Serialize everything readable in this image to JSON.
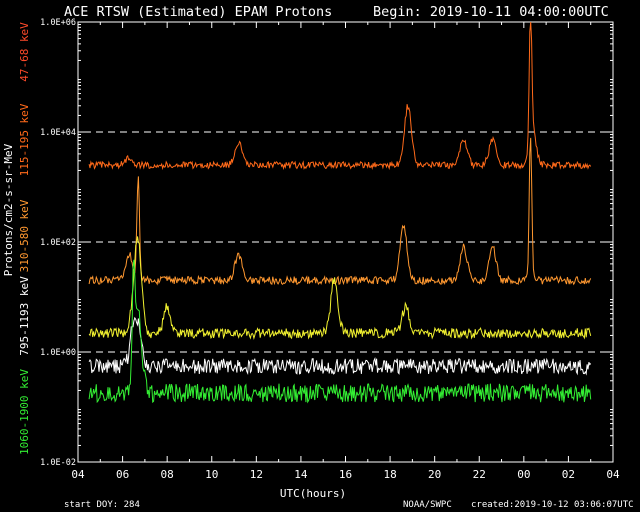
{
  "chart_data": {
    "type": "line",
    "title": "ACE RTSW (Estimated) EPAM Protons",
    "begin": "Begin: 2019-10-11 04:00:00UTC",
    "xlabel": "UTC(hours)",
    "ylabel": "Protons/cm2-s-sr-MeV",
    "y_scale": "log",
    "ylim": [
      0.01,
      1000000
    ],
    "y_ticks": [
      "1.0E-02",
      "1.0E+00",
      "1.0E+02",
      "1.0E+04",
      "1.0E+06"
    ],
    "dashed_reference_lines": [
      1,
      100,
      10000
    ],
    "x_range_hours": [
      4,
      28
    ],
    "x_ticks": [
      "04",
      "06",
      "08",
      "10",
      "12",
      "14",
      "16",
      "18",
      "20",
      "22",
      "00",
      "02",
      "04"
    ],
    "series": [
      {
        "name": "47-68 keV",
        "color": "#ff4a2a",
        "base": 2500,
        "events": [
          [
            6.3,
            1.4
          ],
          [
            11.2,
            2.6
          ],
          [
            18.8,
            12
          ],
          [
            21.3,
            3
          ],
          [
            22.6,
            3
          ],
          [
            24.3,
            250
          ],
          [
            24.4,
            4
          ]
        ]
      },
      {
        "name": "115-195 keV",
        "color": "#ff6a1a",
        "base": 2500,
        "events": [
          [
            6.3,
            1.4
          ],
          [
            11.2,
            2.6
          ],
          [
            18.8,
            12
          ],
          [
            21.3,
            3
          ],
          [
            22.6,
            3
          ],
          [
            24.3,
            250
          ],
          [
            24.4,
            4
          ]
        ]
      },
      {
        "name": "310-580 keV",
        "color": "#ff9830",
        "base": 20,
        "events": [
          [
            6.3,
            3
          ],
          [
            6.7,
            80
          ],
          [
            11.2,
            3
          ],
          [
            18.6,
            10
          ],
          [
            21.3,
            4
          ],
          [
            22.6,
            4
          ],
          [
            24.3,
            450
          ]
        ]
      },
      {
        "name": "795-1193 keV",
        "color": "#f0f030",
        "base": 2.2,
        "events": [
          [
            6.5,
            2.5
          ],
          [
            6.7,
            35
          ],
          [
            8.0,
            3
          ],
          [
            15.5,
            10
          ],
          [
            18.7,
            3
          ]
        ]
      },
      {
        "name": "",
        "color": "#ffffff",
        "base": 0.55,
        "events": [
          [
            6.5,
            5
          ],
          [
            6.7,
            3
          ]
        ]
      },
      {
        "name": "1060-1900 keV",
        "color": "#33ee33",
        "base": 0.18,
        "events": [
          [
            6.5,
            80
          ],
          [
            6.7,
            30
          ]
        ]
      }
    ],
    "footer": {
      "start_doy": "start DOY:  284",
      "source": "NOAA/SWPC",
      "created": "created:2019-10-12 03:06:07UTC"
    }
  }
}
